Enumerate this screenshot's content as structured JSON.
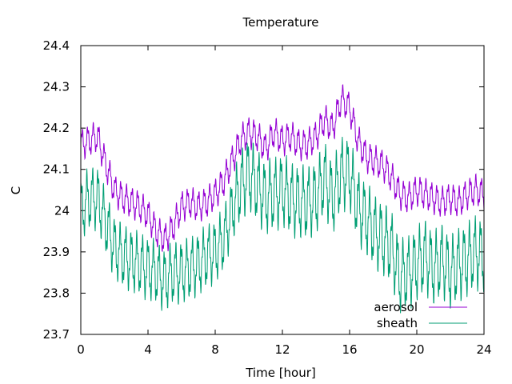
{
  "chart_data": {
    "type": "line",
    "title": "Temperature",
    "xlabel": "Time [hour]",
    "ylabel": "C",
    "xlim": [
      0,
      24
    ],
    "ylim": [
      23.7,
      24.4
    ],
    "x_ticks": [
      0,
      4,
      8,
      12,
      16,
      20,
      24
    ],
    "x_tick_labels": [
      "0",
      "4",
      "8",
      "12",
      "16",
      "20",
      "24"
    ],
    "y_ticks": [
      23.7,
      23.8,
      23.9,
      24.0,
      24.1,
      24.2,
      24.3,
      24.4
    ],
    "y_tick_labels": [
      "23.7",
      "23.8",
      "23.9",
      "24",
      "24.1",
      "24.2",
      "24.3",
      "24.4"
    ],
    "grid": false,
    "legend_position": "bottom-right",
    "series": [
      {
        "name": "aerosol",
        "color": "#9400d3",
        "x": [
          0,
          0.5,
          1,
          1.5,
          2,
          2.5,
          3,
          3.5,
          4,
          4.5,
          5,
          5.5,
          6,
          6.5,
          7,
          7.5,
          8,
          8.5,
          9,
          9.5,
          10,
          10.5,
          11,
          11.5,
          12,
          12.5,
          13,
          13.5,
          14,
          14.5,
          15,
          15.5,
          16,
          16.5,
          17,
          17.5,
          18,
          18.5,
          19,
          19.5,
          20,
          20.5,
          21,
          21.5,
          22,
          22.5,
          23,
          23.5,
          24
        ],
        "y": [
          24.16,
          24.17,
          24.18,
          24.11,
          24.05,
          24.03,
          24.02,
          24.01,
          23.99,
          23.95,
          23.93,
          23.96,
          24.01,
          24.02,
          24.01,
          24.02,
          24.04,
          24.07,
          24.12,
          24.17,
          24.19,
          24.18,
          24.15,
          24.19,
          24.17,
          24.18,
          24.16,
          24.16,
          24.18,
          24.22,
          24.2,
          24.27,
          24.25,
          24.17,
          24.13,
          24.12,
          24.11,
          24.08,
          24.04,
          24.03,
          24.05,
          24.04,
          24.03,
          24.02,
          24.03,
          24.02,
          24.04,
          24.05,
          24.04
        ],
        "amp": [
          0.03,
          0.03,
          0.03,
          0.03,
          0.03,
          0.03,
          0.03,
          0.03,
          0.03,
          0.03,
          0.03,
          0.03,
          0.03,
          0.03,
          0.03,
          0.03,
          0.03,
          0.03,
          0.03,
          0.03,
          0.03,
          0.03,
          0.03,
          0.03,
          0.03,
          0.03,
          0.03,
          0.03,
          0.03,
          0.03,
          0.03,
          0.03,
          0.03,
          0.03,
          0.03,
          0.03,
          0.03,
          0.03,
          0.03,
          0.03,
          0.03,
          0.03,
          0.03,
          0.03,
          0.03,
          0.03,
          0.03,
          0.03,
          0.03
        ]
      },
      {
        "name": "sheath",
        "color": "#009e73",
        "x": [
          0,
          0.5,
          1,
          1.5,
          2,
          2.5,
          3,
          3.5,
          4,
          4.5,
          5,
          5.5,
          6,
          6.5,
          7,
          7.5,
          8,
          8.5,
          9,
          9.5,
          10,
          10.5,
          11,
          11.5,
          12,
          12.5,
          13,
          13.5,
          14,
          14.5,
          15,
          15.5,
          16,
          16.5,
          17,
          17.5,
          18,
          18.5,
          19,
          19.5,
          20,
          20.5,
          21,
          21.5,
          22,
          22.5,
          23,
          23.5,
          24
        ],
        "y": [
          24.0,
          24.03,
          24.03,
          23.97,
          23.91,
          23.89,
          23.88,
          23.87,
          23.86,
          23.85,
          23.83,
          23.85,
          23.85,
          23.86,
          23.87,
          23.89,
          23.9,
          23.93,
          24.0,
          24.06,
          24.09,
          24.06,
          24.03,
          24.04,
          24.05,
          24.03,
          24.02,
          24.02,
          24.03,
          24.08,
          24.03,
          24.09,
          24.09,
          24.01,
          23.98,
          23.95,
          23.93,
          23.91,
          23.84,
          23.85,
          23.87,
          23.89,
          23.86,
          23.88,
          23.85,
          23.87,
          23.88,
          23.9,
          23.89
        ],
        "amp": [
          0.06,
          0.06,
          0.06,
          0.06,
          0.06,
          0.06,
          0.06,
          0.06,
          0.06,
          0.06,
          0.06,
          0.06,
          0.06,
          0.06,
          0.06,
          0.06,
          0.06,
          0.06,
          0.06,
          0.07,
          0.07,
          0.07,
          0.07,
          0.07,
          0.07,
          0.07,
          0.07,
          0.07,
          0.07,
          0.07,
          0.07,
          0.07,
          0.07,
          0.07,
          0.07,
          0.07,
          0.07,
          0.07,
          0.07,
          0.07,
          0.07,
          0.07,
          0.07,
          0.07,
          0.07,
          0.07,
          0.07,
          0.07,
          0.07
        ]
      }
    ]
  }
}
